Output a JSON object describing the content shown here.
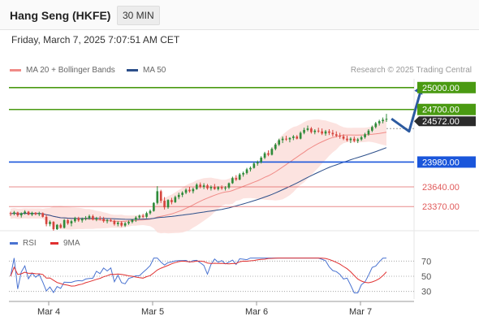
{
  "header": {
    "title": "Hang Seng (HKFE)",
    "interval": "30 MIN"
  },
  "datetime": "Friday, March 7, 2025 7:07:51 AM CET",
  "credit": "Research © 2025 Trading Central",
  "legend": [
    {
      "label": "MA 20 + Bollinger Bands",
      "color": "#f08b87"
    },
    {
      "label": "MA 50",
      "color": "#2c4f8a"
    }
  ],
  "rsi_legend": [
    {
      "label": "RSI",
      "color": "#4a73d1"
    },
    {
      "label": "9MA",
      "color": "#e03030"
    }
  ],
  "chart_data": {
    "type": "candlestick",
    "x_labels": [
      "Mar 4",
      "Mar 5",
      "Mar 6",
      "Mar 7"
    ],
    "ylim": [
      23050,
      25120
    ],
    "levels": [
      {
        "label": "25000.00",
        "value": 25000,
        "color": "#4a9a12",
        "line": "green"
      },
      {
        "label": "24700.00",
        "value": 24700,
        "color": "#4a9a12",
        "line": "green"
      },
      {
        "label": "23980.00",
        "value": 23980,
        "color": "#1a56db",
        "line": "blue"
      },
      {
        "label": "23640.00",
        "value": 23640,
        "color": "#e05a5a",
        "line": "red"
      },
      {
        "label": "23370.00",
        "value": 23370,
        "color": "#e05a5a",
        "line": "red"
      }
    ],
    "last_price": {
      "label": "24572.00",
      "value": 24572
    },
    "candles": [
      [
        23280,
        23300,
        23240,
        23270
      ],
      [
        23270,
        23310,
        23250,
        23290
      ],
      [
        23290,
        23300,
        23230,
        23250
      ],
      [
        23250,
        23290,
        23220,
        23280
      ],
      [
        23280,
        23320,
        23260,
        23300
      ],
      [
        23300,
        23310,
        23250,
        23260
      ],
      [
        23260,
        23300,
        23240,
        23285
      ],
      [
        23285,
        23295,
        23250,
        23265
      ],
      [
        23265,
        23300,
        23240,
        23280
      ],
      [
        23280,
        23290,
        23220,
        23230
      ],
      [
        23230,
        23260,
        23100,
        23130
      ],
      [
        23130,
        23180,
        23100,
        23160
      ],
      [
        23160,
        23170,
        23040,
        23060
      ],
      [
        23060,
        23130,
        23050,
        23120
      ],
      [
        23120,
        23140,
        23070,
        23080
      ],
      [
        23080,
        23200,
        23070,
        23185
      ],
      [
        23185,
        23200,
        23120,
        23140
      ],
      [
        23140,
        23190,
        23100,
        23170
      ],
      [
        23170,
        23230,
        23150,
        23210
      ],
      [
        23210,
        23230,
        23160,
        23180
      ],
      [
        23180,
        23220,
        23150,
        23200
      ],
      [
        23200,
        23240,
        23180,
        23215
      ],
      [
        23215,
        23260,
        23190,
        23240
      ],
      [
        23240,
        23260,
        23180,
        23195
      ],
      [
        23195,
        23230,
        23170,
        23210
      ],
      [
        23210,
        23240,
        23180,
        23200
      ],
      [
        23200,
        23230,
        23150,
        23170
      ],
      [
        23170,
        23200,
        23140,
        23185
      ],
      [
        23185,
        23210,
        23160,
        23175
      ],
      [
        23175,
        23190,
        23110,
        23130
      ],
      [
        23130,
        23170,
        23100,
        23150
      ],
      [
        23150,
        23170,
        23090,
        23110
      ],
      [
        23110,
        23160,
        23090,
        23140
      ],
      [
        23140,
        23180,
        23120,
        23160
      ],
      [
        23160,
        23200,
        23140,
        23190
      ],
      [
        23190,
        23240,
        23160,
        23220
      ],
      [
        23220,
        23260,
        23200,
        23245
      ],
      [
        23245,
        23270,
        23210,
        23230
      ],
      [
        23230,
        23300,
        23210,
        23280
      ],
      [
        23280,
        23330,
        23260,
        23310
      ],
      [
        23310,
        23430,
        23300,
        23420
      ],
      [
        23420,
        23650,
        23400,
        23580
      ],
      [
        23580,
        23600,
        23420,
        23450
      ],
      [
        23450,
        23500,
        23330,
        23360
      ],
      [
        23360,
        23470,
        23340,
        23460
      ],
      [
        23460,
        23490,
        23400,
        23430
      ],
      [
        23430,
        23520,
        23420,
        23500
      ],
      [
        23500,
        23560,
        23470,
        23530
      ],
      [
        23530,
        23580,
        23500,
        23560
      ],
      [
        23560,
        23620,
        23540,
        23600
      ],
      [
        23600,
        23640,
        23560,
        23580
      ],
      [
        23580,
        23630,
        23550,
        23610
      ],
      [
        23610,
        23690,
        23600,
        23670
      ],
      [
        23670,
        23700,
        23620,
        23640
      ],
      [
        23640,
        23690,
        23610,
        23660
      ],
      [
        23660,
        23680,
        23600,
        23620
      ],
      [
        23620,
        23660,
        23590,
        23640
      ],
      [
        23640,
        23680,
        23600,
        23610
      ],
      [
        23610,
        23650,
        23590,
        23635
      ],
      [
        23635,
        23660,
        23600,
        23620
      ],
      [
        23620,
        23650,
        23590,
        23630
      ],
      [
        23630,
        23700,
        23610,
        23690
      ],
      [
        23690,
        23780,
        23680,
        23760
      ],
      [
        23760,
        23800,
        23720,
        23740
      ],
      [
        23740,
        23830,
        23730,
        23810
      ],
      [
        23810,
        23850,
        23780,
        23830
      ],
      [
        23830,
        23900,
        23810,
        23880
      ],
      [
        23880,
        23920,
        23850,
        23900
      ],
      [
        23900,
        23980,
        23890,
        23960
      ],
      [
        23960,
        24000,
        23930,
        23980
      ],
      [
        23980,
        24060,
        23960,
        24040
      ],
      [
        24040,
        24120,
        24020,
        24100
      ],
      [
        24100,
        24140,
        24060,
        24080
      ],
      [
        24080,
        24180,
        24070,
        24160
      ],
      [
        24160,
        24240,
        24140,
        24220
      ],
      [
        24220,
        24300,
        24200,
        24280
      ],
      [
        24280,
        24330,
        24240,
        24300
      ],
      [
        24300,
        24340,
        24270,
        24290
      ],
      [
        24290,
        24320,
        24250,
        24310
      ],
      [
        24310,
        24350,
        24280,
        24330
      ],
      [
        24330,
        24350,
        24290,
        24300
      ],
      [
        24300,
        24400,
        24290,
        24380
      ],
      [
        24380,
        24450,
        24360,
        24420
      ],
      [
        24420,
        24480,
        24400,
        24440
      ],
      [
        24440,
        24460,
        24370,
        24390
      ],
      [
        24390,
        24430,
        24360,
        24410
      ],
      [
        24410,
        24450,
        24380,
        24400
      ],
      [
        24400,
        24440,
        24350,
        24370
      ],
      [
        24370,
        24420,
        24340,
        24400
      ],
      [
        24400,
        24430,
        24350,
        24380
      ],
      [
        24380,
        24420,
        24330,
        24360
      ],
      [
        24360,
        24400,
        24320,
        24340
      ],
      [
        24340,
        24380,
        24300,
        24330
      ],
      [
        24330,
        24360,
        24280,
        24300
      ],
      [
        24300,
        24340,
        24260,
        24280
      ],
      [
        24280,
        24320,
        24240,
        24300
      ],
      [
        24300,
        24330,
        24250,
        24270
      ],
      [
        24270,
        24310,
        24240,
        24290
      ],
      [
        24290,
        24340,
        24270,
        24320
      ],
      [
        24320,
        24380,
        24300,
        24360
      ],
      [
        24360,
        24430,
        24340,
        24410
      ],
      [
        24410,
        24480,
        24390,
        24460
      ],
      [
        24460,
        24530,
        24440,
        24510
      ],
      [
        24510,
        24560,
        24480,
        24540
      ],
      [
        24540,
        24590,
        24510,
        24560
      ],
      [
        24560,
        24640,
        24530,
        24572
      ]
    ],
    "projection": [
      [
        24572,
        2
      ],
      [
        24400,
        9
      ],
      [
        25000,
        14
      ]
    ],
    "rsi": {
      "ylim": [
        20,
        80
      ],
      "ticks": [
        70,
        50,
        30
      ]
    }
  }
}
